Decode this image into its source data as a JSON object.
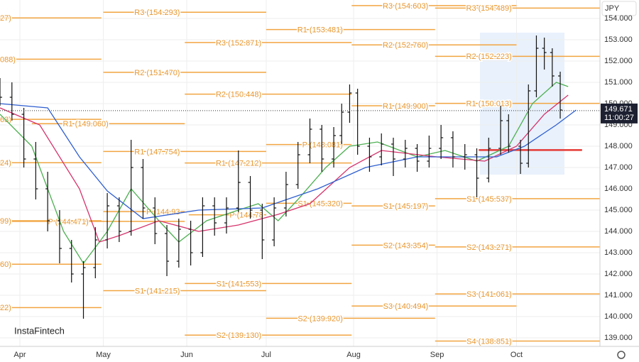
{
  "chart_data": {
    "type": "ohlc",
    "currency": "JPY",
    "watermark": "InstaFintech",
    "last_price": 149.671,
    "countdown": "11:00:27",
    "ylim": [
      138.6,
      154.867
    ],
    "yticks": [
      {
        "value": 139,
        "label": "139.000"
      },
      {
        "value": 140,
        "label": "140.000"
      },
      {
        "value": 141,
        "label": "141.000"
      },
      {
        "value": 142,
        "label": "142.000"
      },
      {
        "value": 143,
        "label": "143.000"
      },
      {
        "value": 144,
        "label": "144.000"
      },
      {
        "value": 145,
        "label": "145.000"
      },
      {
        "value": 146,
        "label": "146.000"
      },
      {
        "value": 147,
        "label": "147.000"
      },
      {
        "value": 148,
        "label": "148.000"
      },
      {
        "value": 149,
        "label": "149.000"
      },
      {
        "value": 150,
        "label": "150.000"
      },
      {
        "value": 151,
        "label": "151.000"
      },
      {
        "value": 152,
        "label": "152.000"
      },
      {
        "value": 153,
        "label": "153.000"
      },
      {
        "value": 154,
        "label": "154.000"
      }
    ],
    "xlim": [
      0,
      151
    ],
    "xticks": [
      {
        "value": 5,
        "label": "Apr"
      },
      {
        "value": 26,
        "label": "May"
      },
      {
        "value": 47,
        "label": "Jun"
      },
      {
        "value": 67,
        "label": "Jul"
      },
      {
        "value": 89,
        "label": "Aug"
      },
      {
        "value": 110,
        "label": "Sep"
      },
      {
        "value": 130,
        "label": "Oct"
      }
    ],
    "grid": true,
    "ohlc": {
      "color": "#111111",
      "x": [
        0,
        3,
        6,
        9,
        12,
        15,
        18,
        21,
        24,
        27,
        30,
        33,
        36,
        39,
        42,
        45,
        48,
        51,
        54,
        57,
        60,
        63,
        66,
        69,
        72,
        75,
        78,
        81,
        84,
        86,
        88,
        90,
        93,
        96,
        99,
        102,
        105,
        108,
        111,
        114,
        117,
        120,
        123,
        126,
        128,
        131,
        133,
        135,
        137,
        139,
        141
      ],
      "open": [
        150.8,
        150.3,
        149.5,
        147.4,
        146.0,
        144.5,
        143.2,
        142.0,
        142.3,
        143.6,
        145.2,
        144.0,
        147.0,
        145.1,
        143.9,
        142.6,
        144.1,
        143.0,
        145.2,
        144.4,
        145.1,
        146.3,
        145.0,
        143.6,
        145.1,
        146.2,
        147.6,
        148.8,
        147.4,
        148.5,
        149.6,
        150.5,
        148.0,
        147.5,
        148.1,
        147.4,
        147.9,
        147.3,
        147.9,
        148.4,
        147.5,
        147.6,
        146.5,
        147.9,
        149.2,
        148.0,
        147.2,
        150.6,
        152.6,
        152.4,
        151.3
      ],
      "high": [
        151.2,
        151.0,
        149.8,
        148.2,
        146.8,
        145.0,
        143.6,
        142.6,
        144.2,
        145.8,
        145.6,
        148.3,
        147.4,
        145.6,
        144.3,
        144.6,
        144.5,
        145.6,
        145.6,
        145.6,
        147.8,
        146.6,
        145.3,
        145.6,
        146.8,
        148.2,
        149.3,
        149.0,
        148.9,
        150.0,
        150.9,
        150.7,
        148.4,
        148.6,
        148.4,
        148.3,
        148.1,
        148.5,
        149.0,
        148.7,
        148.1,
        147.9,
        148.4,
        149.9,
        149.5,
        148.3,
        150.9,
        153.2,
        153.1,
        152.6,
        151.5
      ],
      "low": [
        149.9,
        149.2,
        147.0,
        145.5,
        144.0,
        142.5,
        141.6,
        139.9,
        141.8,
        143.2,
        143.5,
        143.8,
        144.6,
        143.4,
        141.9,
        142.3,
        142.4,
        142.8,
        143.8,
        143.9,
        144.9,
        144.6,
        142.7,
        143.3,
        144.7,
        146.0,
        147.2,
        146.8,
        147.0,
        148.1,
        149.1,
        147.6,
        146.8,
        147.1,
        146.6,
        147.0,
        146.8,
        147.0,
        147.4,
        147.0,
        146.9,
        145.6,
        146.3,
        147.6,
        147.7,
        146.7,
        147.0,
        150.3,
        151.6,
        150.8,
        149.3
      ],
      "close": [
        150.3,
        149.5,
        147.4,
        146.0,
        144.5,
        143.2,
        142.0,
        142.3,
        143.6,
        145.2,
        144.0,
        147.0,
        145.1,
        143.9,
        142.6,
        144.1,
        143.0,
        145.2,
        144.4,
        145.1,
        146.3,
        145.0,
        143.6,
        145.1,
        146.2,
        147.6,
        148.8,
        147.4,
        148.5,
        149.6,
        150.5,
        148.0,
        147.5,
        148.1,
        147.4,
        147.9,
        147.3,
        147.9,
        148.4,
        147.5,
        147.6,
        146.5,
        147.9,
        149.2,
        148.0,
        147.2,
        150.6,
        152.6,
        152.4,
        151.3,
        149.7
      ]
    },
    "series": [
      {
        "color": "#4caf50",
        "x": [
          0,
          8,
          16,
          21,
          27,
          33,
          40,
          45,
          52,
          60,
          65,
          70,
          75,
          82,
          88,
          95,
          105,
          112,
          120,
          128,
          134,
          140,
          143
        ],
        "values": [
          149.5,
          148.0,
          144.0,
          142.5,
          144.0,
          146.0,
          144.5,
          143.5,
          144.5,
          145.0,
          145.3,
          144.5,
          145.5,
          147.0,
          148.0,
          148.2,
          147.5,
          147.8,
          147.3,
          148.0,
          150.0,
          151.0,
          150.8
        ]
      },
      {
        "color": "#d6336c",
        "x": [
          0,
          10,
          20,
          25,
          30,
          40,
          50,
          60,
          70,
          78,
          88,
          96,
          110,
          122,
          130,
          137,
          143
        ],
        "values": [
          149.8,
          149.0,
          146.0,
          143.5,
          143.8,
          144.5,
          144.0,
          144.3,
          144.8,
          145.3,
          147.0,
          147.8,
          147.5,
          147.3,
          148.0,
          149.5,
          150.4
        ]
      },
      {
        "color": "#2f5fd0",
        "x": [
          0,
          12,
          20,
          27,
          36,
          50,
          66,
          80,
          92,
          105,
          125,
          132,
          140,
          145
        ],
        "values": [
          150.0,
          149.8,
          147.5,
          145.9,
          144.6,
          145.0,
          145.1,
          146.0,
          147.0,
          147.5,
          147.5,
          148.0,
          149.0,
          149.7
        ]
      }
    ],
    "level_color": "#f2a541",
    "levels": [
      {
        "label": "27)",
        "value": 154.027,
        "start": 0,
        "end": 25.5
      },
      {
        "label": "088)",
        "value": 152.088,
        "start": 0,
        "end": 25.5
      },
      {
        "label": "63)",
        "value": 149.263,
        "start": 0,
        "end": 25.5
      },
      {
        "label": "24)",
        "value": 147.224,
        "start": 0,
        "end": 25.5
      },
      {
        "label": "99)",
        "value": 144.499,
        "start": 0,
        "end": 25.5
      },
      {
        "label": "60)",
        "value": 142.46,
        "start": 0,
        "end": 25.5
      },
      {
        "label": "22)",
        "value": 140.422,
        "start": 0,
        "end": 25.5
      },
      {
        "label": "R1 (149.060)",
        "value": 149.06,
        "start": 8,
        "end": 46.5
      },
      {
        "label": "P (144.471)",
        "value": 144.471,
        "start": 3,
        "end": 46.5
      },
      {
        "label": "R3 (154.293)",
        "value": 154.293,
        "start": 26,
        "end": 67
      },
      {
        "label": "R2 (151.470)",
        "value": 151.47,
        "start": 26,
        "end": 67
      },
      {
        "label": "R1 (147.754)",
        "value": 147.754,
        "start": 26,
        "end": 67
      },
      {
        "label": "P (144.93",
        "value": 144.93,
        "start": 26,
        "end": 46.5
      },
      {
        "label": "S1 (141.215)",
        "value": 141.215,
        "start": 26,
        "end": 67
      },
      {
        "label": "R3 (152.871)",
        "value": 152.871,
        "start": 46.5,
        "end": 88.5
      },
      {
        "label": "R2 (150.448)",
        "value": 150.448,
        "start": 46.5,
        "end": 88.5
      },
      {
        "label": "R1 (147.212)",
        "value": 147.212,
        "start": 46.5,
        "end": 88.5
      },
      {
        "label": "P (144.78",
        "value": 144.78,
        "start": 47.5,
        "end": 67
      },
      {
        "label": "S1 (141.553)",
        "value": 141.553,
        "start": 46.5,
        "end": 88.5
      },
      {
        "label": "S2 (139.130)",
        "value": 139.13,
        "start": 46.5,
        "end": 88.5
      },
      {
        "label": "R1 (153.481)",
        "value": 153.481,
        "start": 67,
        "end": 109.5
      },
      {
        "label": "P (148.081)",
        "value": 148.081,
        "start": 67,
        "end": 88.5
      },
      {
        "label": "S1 (145.320)",
        "value": 145.32,
        "start": 67,
        "end": 88.5
      },
      {
        "label": "S2 (139.920)",
        "value": 139.92,
        "start": 67,
        "end": 109.5
      },
      {
        "label": "R3 (154.603)",
        "value": 154.603,
        "start": 88.5,
        "end": 130
      },
      {
        "label": "R2 (152.760)",
        "value": 152.76,
        "start": 88.5,
        "end": 130
      },
      {
        "label": "R1 (149.900)",
        "value": 149.9,
        "start": 88.5,
        "end": 109.5
      },
      {
        "label": "S1 (145.197)",
        "value": 145.197,
        "start": 88.5,
        "end": 109.5
      },
      {
        "label": "S2 (143.354)",
        "value": 143.354,
        "start": 88.5,
        "end": 109.5
      },
      {
        "label": "S3 (140.494)",
        "value": 140.494,
        "start": 88.5,
        "end": 130
      },
      {
        "label": "R3 (154.489)",
        "value": 154.489,
        "start": 109.5,
        "end": 151
      },
      {
        "label": "R2 (152.223)",
        "value": 152.223,
        "start": 109.5,
        "end": 151
      },
      {
        "label": "R1 (150.013)",
        "value": 150.013,
        "start": 109.5,
        "end": 151
      },
      {
        "label": "S1 (145.537)",
        "value": 145.537,
        "start": 109.5,
        "end": 151
      },
      {
        "label": "S2 (143.271)",
        "value": 143.271,
        "start": 109.5,
        "end": 151
      },
      {
        "label": "S3 (141.061)",
        "value": 141.061,
        "start": 109.5,
        "end": 151
      },
      {
        "label": "S4 (138.851)",
        "value": 138.851,
        "start": 109.5,
        "end": 151
      }
    ],
    "poc": {
      "value": 147.82,
      "start": 120.5,
      "end": 146.5,
      "color": "#e53935"
    }
  }
}
